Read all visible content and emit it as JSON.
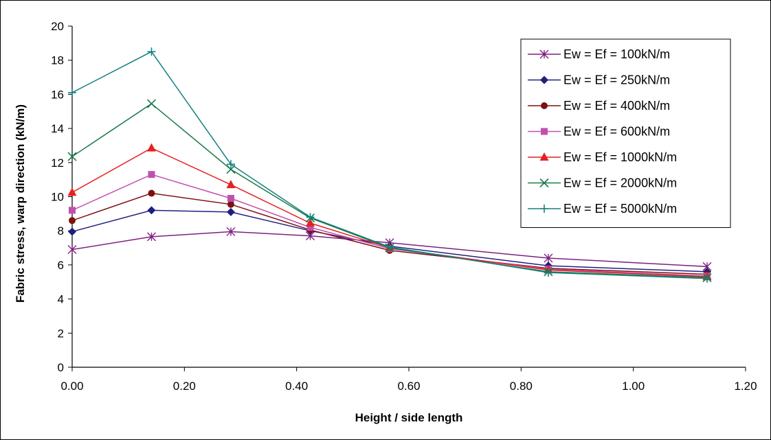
{
  "chart_data": {
    "type": "line",
    "title": "",
    "xlabel": "Height / side length",
    "ylabel": "Fabric stress, warp direction (kN/m)",
    "xlim": [
      0,
      1.2
    ],
    "ylim": [
      0,
      20
    ],
    "x_ticks": [
      "0.00",
      "0.20",
      "0.40",
      "0.60",
      "0.80",
      "1.00",
      "1.20"
    ],
    "y_ticks": [
      "0",
      "2",
      "4",
      "6",
      "8",
      "10",
      "12",
      "14",
      "16",
      "18",
      "20"
    ],
    "grid": false,
    "legend_position": "top-right",
    "x": [
      0.0,
      0.1414,
      0.2828,
      0.4243,
      0.5657,
      0.8485,
      1.1314
    ],
    "series": [
      {
        "name": "Ew = Ef = 100kN/m",
        "color": "#7f1f7f",
        "marker": "asterisk",
        "values": [
          6.9,
          7.65,
          7.95,
          7.7,
          7.3,
          6.4,
          5.9
        ]
      },
      {
        "name": "Ew = Ef = 250kN/m",
        "color": "#1f1f80",
        "marker": "diamond",
        "values": [
          7.95,
          9.2,
          9.1,
          8.0,
          7.1,
          5.95,
          5.6
        ]
      },
      {
        "name": "Ew = Ef = 400kN/m",
        "color": "#7f1010",
        "marker": "circle",
        "values": [
          8.6,
          10.2,
          9.55,
          8.05,
          6.85,
          5.8,
          5.45
        ]
      },
      {
        "name": "Ew = Ef = 600kN/m",
        "color": "#c050b0",
        "marker": "square",
        "values": [
          9.2,
          11.3,
          9.9,
          8.2,
          6.95,
          5.75,
          5.35
        ]
      },
      {
        "name": "Ew = Ef = 1000kN/m",
        "color": "#e82020",
        "marker": "triangle",
        "values": [
          10.25,
          12.85,
          10.7,
          8.45,
          7.0,
          5.7,
          5.3
        ]
      },
      {
        "name": "Ew = Ef = 2000kN/m",
        "color": "#1a7a4a",
        "marker": "x",
        "values": [
          12.35,
          15.45,
          11.6,
          8.75,
          7.0,
          5.6,
          5.25
        ]
      },
      {
        "name": "Ew = Ef = 5000kN/m",
        "color": "#148080",
        "marker": "plus",
        "values": [
          16.1,
          18.5,
          11.9,
          8.8,
          7.05,
          5.55,
          5.2
        ]
      }
    ]
  }
}
